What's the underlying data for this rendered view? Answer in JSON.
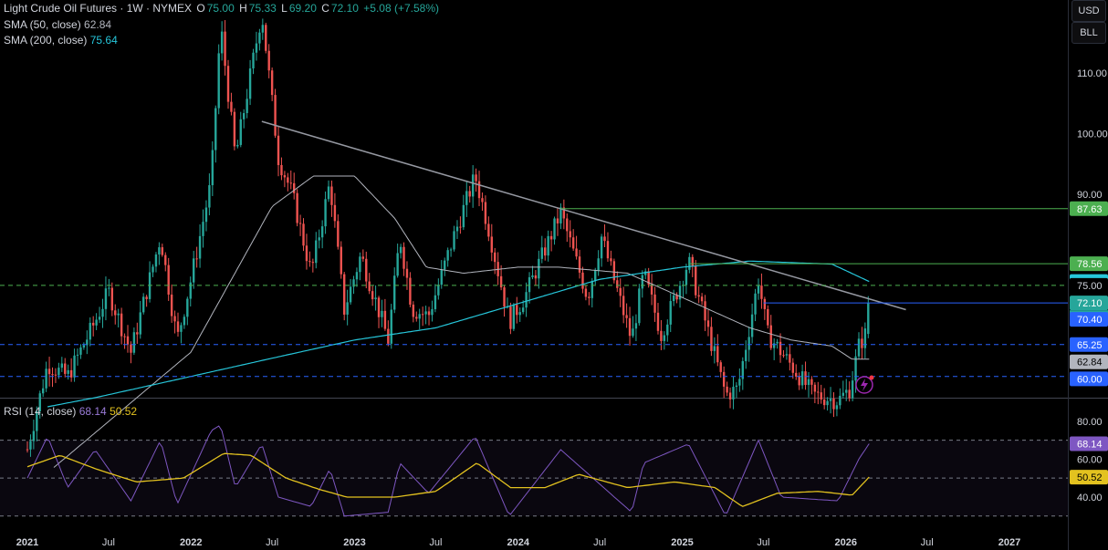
{
  "header": {
    "title": "Light Crude Oil Futures · 1W · NYMEX",
    "o_label": "O",
    "o_value": "75.00",
    "h_label": "H",
    "h_value": "75.33",
    "l_label": "L",
    "l_value": "69.20",
    "c_label": "C",
    "c_value": "72.10",
    "change": "+5.08 (+7.58%)"
  },
  "indicators": {
    "sma50_label": "SMA (50, close)",
    "sma50_value": "62.84",
    "sma200_label": "SMA (200, close)",
    "sma200_value": "75.64",
    "rsi_label": "RSI (14, close)",
    "rsi_value": "68.14",
    "rsi_ma_value": "50.52"
  },
  "units": {
    "currency": "USD",
    "unit": "BLL"
  },
  "colors": {
    "bull": "#26a69a",
    "bear": "#ef5350",
    "sma50": "#b2b5be",
    "sma200": "#26c6da",
    "rsi": "#7e57c2",
    "rsi_ma": "#e3c21f",
    "trendline": "#9598a1",
    "level_green": "#4caf50",
    "level_blue": "#2962ff",
    "price_tag": "#26a69a"
  },
  "chart_data": {
    "type": "candlestick",
    "timeframe": "1W",
    "x_ticks": [
      "2021",
      "Jul",
      "2022",
      "Jul",
      "2023",
      "Jul",
      "2024",
      "Jul",
      "2025",
      "Jul",
      "2026",
      "Jul",
      "2027"
    ],
    "price_axis_ticks": [
      "110.00",
      "100.00",
      "90.00",
      "75.00",
      "72.10",
      "70.40",
      "65.25",
      "62.84",
      "60.00"
    ],
    "price_ylim": [
      56.5,
      122
    ],
    "price_anchors": [
      [
        "2021-01-01",
        48
      ],
      [
        "2021-02-15",
        62
      ],
      [
        "2021-04-01",
        60
      ],
      [
        "2021-06-01",
        69
      ],
      [
        "2021-07-01",
        74
      ],
      [
        "2021-08-20",
        64
      ],
      [
        "2021-10-25",
        83
      ],
      [
        "2021-12-01",
        66
      ],
      [
        "2022-01-01",
        76
      ],
      [
        "2022-02-15",
        92
      ],
      [
        "2022-03-08",
        118
      ],
      [
        "2022-04-10",
        96
      ],
      [
        "2022-06-08",
        120
      ],
      [
        "2022-07-15",
        96
      ],
      [
        "2022-08-15",
        90
      ],
      [
        "2022-09-26",
        77
      ],
      [
        "2022-11-07",
        92
      ],
      [
        "2022-12-09",
        71
      ],
      [
        "2023-01-15",
        80
      ],
      [
        "2023-03-17",
        66
      ],
      [
        "2023-04-12",
        83
      ],
      [
        "2023-05-10",
        71
      ],
      [
        "2023-06-15",
        70
      ],
      [
        "2023-08-10",
        83
      ],
      [
        "2023-09-27",
        93
      ],
      [
        "2023-10-25",
        85
      ],
      [
        "2023-12-12",
        69
      ],
      [
        "2024-01-15",
        73
      ],
      [
        "2024-04-05",
        87
      ],
      [
        "2024-06-04",
        73
      ],
      [
        "2024-07-05",
        83
      ],
      [
        "2024-09-10",
        66
      ],
      [
        "2024-10-07",
        77
      ],
      [
        "2024-11-15",
        67
      ],
      [
        "2025-01-15",
        79
      ],
      [
        "2025-03-05",
        66
      ],
      [
        "2025-04-08",
        57
      ],
      [
        "2025-05-05",
        58
      ],
      [
        "2025-06-20",
        76
      ],
      [
        "2025-07-10",
        67
      ],
      [
        "2025-08-10",
        64
      ],
      [
        "2025-10-20",
        57
      ],
      [
        "2025-12-15",
        56
      ],
      [
        "2026-01-10",
        58
      ],
      [
        "2026-01-30",
        65
      ],
      [
        "2026-02-14",
        67
      ],
      [
        "2026-02-22",
        72.1
      ]
    ],
    "sma50_anchors": [
      [
        "2021-03-01",
        45
      ],
      [
        "2022-01-01",
        64
      ],
      [
        "2022-07-01",
        88
      ],
      [
        "2022-10-01",
        93
      ],
      [
        "2023-01-01",
        93
      ],
      [
        "2023-04-01",
        86
      ],
      [
        "2023-06-10",
        78
      ],
      [
        "2023-09-01",
        77
      ],
      [
        "2024-01-01",
        78
      ],
      [
        "2024-04-01",
        78
      ],
      [
        "2024-09-01",
        77
      ],
      [
        "2025-01-01",
        73
      ],
      [
        "2025-06-01",
        68
      ],
      [
        "2025-09-01",
        66
      ],
      [
        "2025-12-01",
        65
      ],
      [
        "2026-01-15",
        62.84
      ],
      [
        "2026-02-22",
        62.84
      ]
    ],
    "sma200_anchors": [
      [
        "2021-02-15",
        55
      ],
      [
        "2021-06-01",
        56.5
      ],
      [
        "2022-01-01",
        60
      ],
      [
        "2022-07-01",
        63
      ],
      [
        "2023-01-01",
        66
      ],
      [
        "2023-07-01",
        68
      ],
      [
        "2024-01-01",
        72
      ],
      [
        "2024-07-01",
        76
      ],
      [
        "2025-01-01",
        78
      ],
      [
        "2025-06-01",
        79
      ],
      [
        "2025-12-01",
        78.5
      ],
      [
        "2026-02-22",
        75.64
      ]
    ],
    "trendline": {
      "from": [
        "2022-06-08",
        102
      ],
      "to": [
        "2026-05-15",
        71
      ]
    },
    "levels": [
      {
        "value": 87.63,
        "label": "87.63",
        "style": "solid",
        "color": "green"
      },
      {
        "value": 78.56,
        "label": "78.56",
        "style": "solid",
        "color": "green"
      },
      {
        "value": 75.0,
        "label": "75.00",
        "style": "dashed",
        "color": "green"
      },
      {
        "value": 72.1,
        "label": "72.10",
        "style": "solid",
        "color": "blue",
        "sublabel": "4d 16h"
      },
      {
        "value": 65.25,
        "label": "65.25",
        "style": "dashed",
        "color": "blue"
      },
      {
        "value": 60.0,
        "label": "60.00",
        "style": "dashed",
        "color": "blue"
      }
    ],
    "rsi": {
      "ylim": [
        27,
        90
      ],
      "ticks": [
        "80.00",
        "60.00",
        "40.00"
      ],
      "bands": [
        70,
        50,
        30
      ],
      "anchors": [
        [
          "2021-01-01",
          50
        ],
        [
          "2021-02-15",
          72
        ],
        [
          "2021-04-01",
          45
        ],
        [
          "2021-06-01",
          65
        ],
        [
          "2021-08-20",
          38
        ],
        [
          "2021-10-25",
          70
        ],
        [
          "2021-12-01",
          36
        ],
        [
          "2022-02-15",
          75
        ],
        [
          "2022-03-08",
          78
        ],
        [
          "2022-04-10",
          45
        ],
        [
          "2022-06-08",
          68
        ],
        [
          "2022-07-15",
          40
        ],
        [
          "2022-09-26",
          35
        ],
        [
          "2022-11-07",
          55
        ],
        [
          "2022-12-09",
          30
        ],
        [
          "2023-03-17",
          32
        ],
        [
          "2023-04-12",
          58
        ],
        [
          "2023-06-15",
          42
        ],
        [
          "2023-09-27",
          72
        ],
        [
          "2023-12-12",
          30
        ],
        [
          "2024-04-05",
          65
        ],
        [
          "2024-09-10",
          32
        ],
        [
          "2024-10-07",
          58
        ],
        [
          "2025-01-15",
          68
        ],
        [
          "2025-04-08",
          30
        ],
        [
          "2025-06-20",
          70
        ],
        [
          "2025-08-10",
          40
        ],
        [
          "2025-12-15",
          38
        ],
        [
          "2026-01-30",
          60
        ],
        [
          "2026-02-22",
          68.14
        ]
      ],
      "ma_anchors": [
        [
          "2021-01-01",
          56
        ],
        [
          "2021-03-15",
          62
        ],
        [
          "2021-06-01",
          55
        ],
        [
          "2021-09-01",
          48
        ],
        [
          "2021-12-15",
          50
        ],
        [
          "2022-03-15",
          63
        ],
        [
          "2022-05-15",
          62
        ],
        [
          "2022-08-01",
          50
        ],
        [
          "2022-10-15",
          44
        ],
        [
          "2022-12-15",
          40
        ],
        [
          "2023-04-01",
          40
        ],
        [
          "2023-07-01",
          43
        ],
        [
          "2023-10-01",
          58
        ],
        [
          "2023-12-15",
          45
        ],
        [
          "2024-03-01",
          45
        ],
        [
          "2024-05-15",
          52
        ],
        [
          "2024-09-01",
          45
        ],
        [
          "2024-12-15",
          48
        ],
        [
          "2025-03-15",
          45
        ],
        [
          "2025-05-15",
          35
        ],
        [
          "2025-08-01",
          42
        ],
        [
          "2025-11-01",
          43
        ],
        [
          "2026-01-15",
          41
        ],
        [
          "2026-02-22",
          50.52
        ]
      ]
    }
  }
}
